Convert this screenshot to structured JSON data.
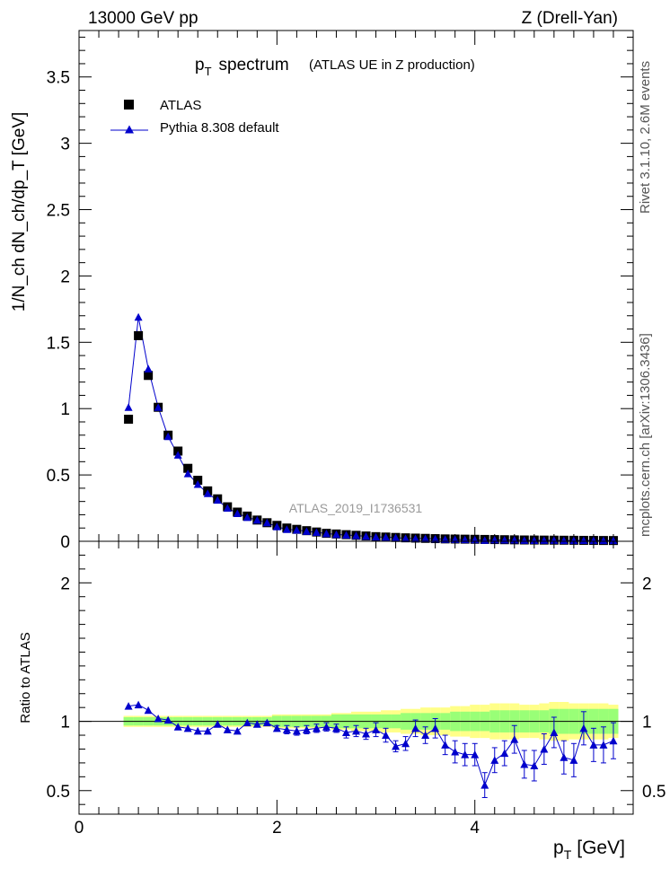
{
  "header": {
    "energy": "13000 GeV pp",
    "process": "Z (Drell-Yan)"
  },
  "side_labels": {
    "rivet": "Rivet 3.1.10,  2.6M events",
    "mcplots": "mcplots.cern.ch [arXiv:1306.3436]"
  },
  "colors": {
    "atlas": "#000000",
    "pythia": "#0000cc",
    "band_inner": "#99ff77",
    "band_outer": "#ffff88"
  },
  "chart_data": [
    {
      "type": "scatter",
      "title_main": "p",
      "title_sub": "T",
      "title_rest": "spectrum",
      "title_note": "(ATLAS UE in Z production)",
      "analysis_id": "ATLAS_2019_I1736531",
      "ylabel": "1/N_ch dN_ch/dp_T [GeV]",
      "ylim": [
        0,
        3.85
      ],
      "xlim": [
        0,
        5.6
      ],
      "yticks": [
        "0",
        "0.5",
        "1",
        "1.5",
        "2",
        "2.5",
        "3",
        "3.5"
      ],
      "legend": [
        {
          "name": "ATLAS",
          "marker": "square"
        },
        {
          "name": "Pythia 8.308 default",
          "marker": "triangle-line"
        }
      ],
      "legend_position": "top-left",
      "x": [
        0.5,
        0.6,
        0.7,
        0.8,
        0.9,
        1.0,
        1.1,
        1.2,
        1.3,
        1.4,
        1.5,
        1.6,
        1.7,
        1.8,
        1.9,
        2.0,
        2.1,
        2.2,
        2.3,
        2.4,
        2.5,
        2.6,
        2.7,
        2.8,
        2.9,
        3.0,
        3.1,
        3.2,
        3.3,
        3.4,
        3.5,
        3.6,
        3.7,
        3.8,
        3.9,
        4.0,
        4.1,
        4.2,
        4.3,
        4.4,
        4.5,
        4.6,
        4.7,
        4.8,
        4.9,
        5.0,
        5.1,
        5.2,
        5.3,
        5.4
      ],
      "series": [
        {
          "name": "ATLAS",
          "values": [
            0.92,
            1.55,
            1.25,
            1.01,
            0.8,
            0.68,
            0.55,
            0.46,
            0.38,
            0.32,
            0.26,
            0.22,
            0.19,
            0.16,
            0.14,
            0.12,
            0.1,
            0.09,
            0.08,
            0.07,
            0.06,
            0.055,
            0.05,
            0.045,
            0.04,
            0.035,
            0.032,
            0.029,
            0.026,
            0.024,
            0.022,
            0.02,
            0.018,
            0.017,
            0.016,
            0.015,
            0.014,
            0.013,
            0.012,
            0.011,
            0.01,
            0.0095,
            0.009,
            0.0085,
            0.008,
            0.0075,
            0.007,
            0.0065,
            0.006,
            0.0058
          ]
        },
        {
          "name": "Pythia 8.308 default",
          "values": [
            1.01,
            1.69,
            1.3,
            1.01,
            0.79,
            0.65,
            0.51,
            0.43,
            0.36,
            0.31,
            0.25,
            0.21,
            0.18,
            0.16,
            0.14,
            0.11,
            0.09,
            0.085,
            0.075,
            0.068,
            0.058,
            0.052,
            0.047,
            0.043,
            0.038,
            0.033,
            0.031,
            0.028,
            0.022,
            0.021,
            0.021,
            0.019,
            0.015,
            0.014,
            0.013,
            0.012,
            0.008,
            0.011,
            0.01,
            0.01,
            0.008,
            0.007,
            0.008,
            0.008,
            0.006,
            0.006,
            0.007,
            0.006,
            0.006,
            0.006
          ]
        }
      ]
    },
    {
      "type": "scatter",
      "ylabel": "Ratio to ATLAS",
      "xlabel_main": "p",
      "xlabel_sub": "T",
      "xlabel_rest": "[GeV]",
      "ylim": [
        0.33,
        2.3
      ],
      "xlim": [
        0,
        5.6
      ],
      "xticks": [
        "0",
        "2",
        "4"
      ],
      "yticks": [
        "0.5",
        "1",
        "2"
      ],
      "x": [
        0.5,
        0.6,
        0.7,
        0.8,
        0.9,
        1.0,
        1.1,
        1.2,
        1.3,
        1.4,
        1.5,
        1.6,
        1.7,
        1.8,
        1.9,
        2.0,
        2.1,
        2.2,
        2.3,
        2.4,
        2.5,
        2.6,
        2.7,
        2.8,
        2.9,
        3.0,
        3.1,
        3.2,
        3.3,
        3.4,
        3.5,
        3.6,
        3.7,
        3.8,
        3.9,
        4.0,
        4.1,
        4.2,
        4.3,
        4.4,
        4.5,
        4.6,
        4.7,
        4.8,
        4.9,
        5.0,
        5.1,
        5.2,
        5.3,
        5.4
      ],
      "series": [
        {
          "name": "Pythia 8.308 default",
          "values": [
            1.11,
            1.12,
            1.08,
            1.02,
            1.01,
            0.96,
            0.95,
            0.93,
            0.93,
            0.98,
            0.94,
            0.93,
            0.99,
            0.98,
            0.99,
            0.95,
            0.94,
            0.93,
            0.94,
            0.95,
            0.96,
            0.95,
            0.92,
            0.93,
            0.91,
            0.94,
            0.9,
            0.82,
            0.84,
            0.95,
            0.9,
            0.95,
            0.83,
            0.78,
            0.76,
            0.76,
            0.54,
            0.72,
            0.77,
            0.87,
            0.69,
            0.68,
            0.8,
            0.92,
            0.74,
            0.72,
            0.95,
            0.83,
            0.83,
            0.86
          ],
          "errors": [
            0.005,
            0.005,
            0.005,
            0.005,
            0.005,
            0.005,
            0.005,
            0.005,
            0.005,
            0.005,
            0.005,
            0.005,
            0.005,
            0.005,
            0.01,
            0.02,
            0.03,
            0.03,
            0.03,
            0.03,
            0.03,
            0.03,
            0.04,
            0.04,
            0.04,
            0.05,
            0.05,
            0.04,
            0.05,
            0.06,
            0.06,
            0.07,
            0.07,
            0.08,
            0.08,
            0.08,
            0.09,
            0.09,
            0.09,
            0.1,
            0.1,
            0.11,
            0.11,
            0.11,
            0.12,
            0.12,
            0.12,
            0.12,
            0.13,
            0.13
          ]
        }
      ],
      "band_inner": [
        0.03,
        0.03,
        0.03,
        0.03,
        0.03,
        0.03,
        0.03,
        0.03,
        0.03,
        0.03,
        0.03,
        0.03,
        0.03,
        0.03,
        0.03,
        0.04,
        0.04,
        0.04,
        0.04,
        0.04,
        0.04,
        0.05,
        0.05,
        0.05,
        0.05,
        0.05,
        0.05,
        0.05,
        0.06,
        0.06,
        0.06,
        0.06,
        0.06,
        0.07,
        0.07,
        0.07,
        0.07,
        0.08,
        0.08,
        0.08,
        0.08,
        0.08,
        0.08,
        0.09,
        0.09,
        0.09,
        0.09,
        0.09,
        0.09,
        0.09
      ],
      "band_outer": [
        0.04,
        0.04,
        0.04,
        0.04,
        0.04,
        0.04,
        0.04,
        0.04,
        0.04,
        0.04,
        0.04,
        0.04,
        0.04,
        0.04,
        0.04,
        0.05,
        0.05,
        0.05,
        0.05,
        0.05,
        0.05,
        0.06,
        0.06,
        0.07,
        0.07,
        0.07,
        0.08,
        0.08,
        0.09,
        0.09,
        0.1,
        0.1,
        0.1,
        0.11,
        0.11,
        0.12,
        0.12,
        0.13,
        0.13,
        0.13,
        0.12,
        0.12,
        0.13,
        0.14,
        0.14,
        0.13,
        0.13,
        0.13,
        0.13,
        0.12
      ]
    }
  ]
}
